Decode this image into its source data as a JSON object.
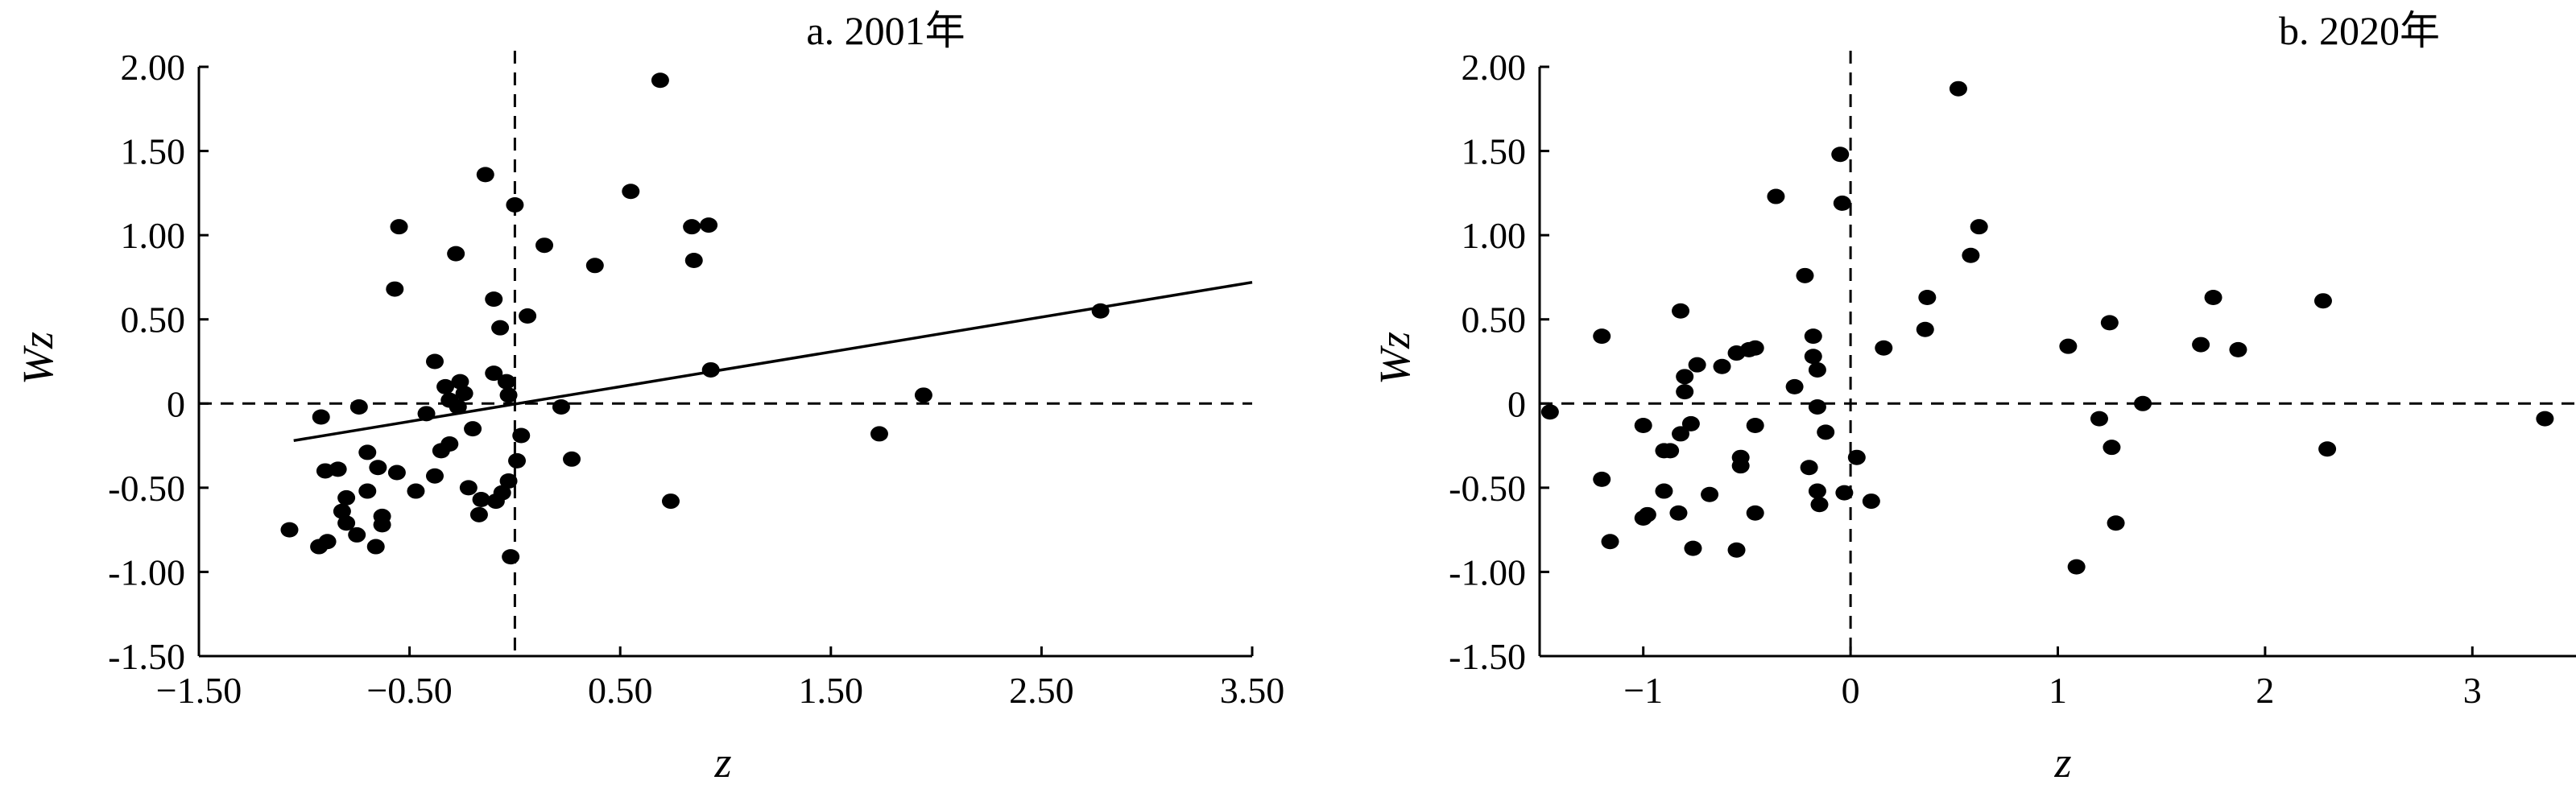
{
  "chart_data": [
    {
      "type": "scatter",
      "title": "a. 2001年",
      "xlabel": "z",
      "ylabel": "Wz",
      "xlim": [
        -1.5,
        3.5
      ],
      "ylim": [
        -1.5,
        2.0
      ],
      "xticks": [
        -1.5,
        -0.5,
        0.5,
        1.5,
        2.5,
        3.5
      ],
      "xtick_labels": [
        "−1.50",
        "−0.50",
        "0.50",
        "1.50",
        "2.50",
        "3.50"
      ],
      "yticks": [
        -1.5,
        -1.0,
        -0.5,
        0,
        0.5,
        1.0,
        1.5,
        2.0
      ],
      "ytick_labels": [
        "-1.50",
        "-1.00",
        "-0.50",
        "0",
        "0.50",
        "1.00",
        "1.50",
        "2.00"
      ],
      "reference_lines": {
        "x": 0,
        "y": 0
      },
      "trendline": {
        "x": [
          -1.05,
          3.5
        ],
        "y": [
          -0.22,
          0.72
        ]
      },
      "points": [
        [
          -1.07,
          -0.75
        ],
        [
          -0.93,
          -0.85
        ],
        [
          -0.92,
          -0.08
        ],
        [
          -0.9,
          -0.4
        ],
        [
          -0.89,
          -0.82
        ],
        [
          -0.84,
          -0.39
        ],
        [
          -0.82,
          -0.64
        ],
        [
          -0.8,
          -0.56
        ],
        [
          -0.8,
          -0.71
        ],
        [
          -0.74,
          -0.02
        ],
        [
          -0.75,
          -0.78
        ],
        [
          -0.7,
          -0.29
        ],
        [
          -0.7,
          -0.52
        ],
        [
          -0.66,
          -0.85
        ],
        [
          -0.65,
          -0.38
        ],
        [
          -0.63,
          -0.67
        ],
        [
          -0.63,
          -0.72
        ],
        [
          -0.57,
          0.68
        ],
        [
          -0.55,
          1.05
        ],
        [
          -0.56,
          -0.41
        ],
        [
          -0.47,
          -0.52
        ],
        [
          -0.38,
          0.25
        ],
        [
          -0.38,
          -0.43
        ],
        [
          -0.42,
          -0.06
        ],
        [
          -0.35,
          -0.28
        ],
        [
          -0.33,
          0.1
        ],
        [
          -0.31,
          -0.24
        ],
        [
          -0.31,
          0.02
        ],
        [
          -0.28,
          0.89
        ],
        [
          -0.27,
          -0.02
        ],
        [
          -0.24,
          0.06
        ],
        [
          -0.26,
          0.13
        ],
        [
          -0.22,
          -0.5
        ],
        [
          -0.2,
          -0.15
        ],
        [
          -0.17,
          -0.66
        ],
        [
          -0.16,
          -0.57
        ],
        [
          -0.14,
          1.36
        ],
        [
          -0.1,
          0.62
        ],
        [
          -0.1,
          0.18
        ],
        [
          -0.09,
          -0.58
        ],
        [
          -0.06,
          -0.53
        ],
        [
          -0.07,
          0.45
        ],
        [
          -0.04,
          0.13
        ],
        [
          -0.03,
          0.05
        ],
        [
          -0.02,
          -0.91
        ],
        [
          -0.03,
          -0.46
        ],
        [
          0.0,
          1.18
        ],
        [
          0.01,
          -0.34
        ],
        [
          0.03,
          -0.19
        ],
        [
          0.06,
          0.52
        ],
        [
          0.14,
          0.94
        ],
        [
          0.22,
          -0.02
        ],
        [
          0.27,
          -0.33
        ],
        [
          0.38,
          0.82
        ],
        [
          0.55,
          1.26
        ],
        [
          0.69,
          1.92
        ],
        [
          0.74,
          -0.58
        ],
        [
          0.84,
          1.05
        ],
        [
          0.85,
          0.85
        ],
        [
          0.92,
          1.06
        ],
        [
          0.93,
          0.2
        ],
        [
          1.73,
          -0.18
        ],
        [
          1.94,
          0.05
        ],
        [
          2.78,
          0.55
        ]
      ]
    },
    {
      "type": "scatter",
      "title": "b. 2020年",
      "xlabel": "z",
      "ylabel": "Wz",
      "xlim": [
        -1.5,
        3.5
      ],
      "ylim": [
        -1.5,
        2.0
      ],
      "xticks": [
        -1,
        0,
        1,
        2,
        3
      ],
      "xtick_labels": [
        "−1",
        "0",
        "1",
        "2",
        "3"
      ],
      "yticks": [
        -1.5,
        -1.0,
        -0.5,
        0,
        0.5,
        1.0,
        1.5,
        2.0
      ],
      "ytick_labels": [
        "-1.50",
        "-1.00",
        "-0.50",
        "0",
        "0.50",
        "1.00",
        "1.50",
        "2.00"
      ],
      "reference_lines": {
        "x": 0,
        "y": 0
      },
      "points": [
        [
          -1.45,
          -0.05
        ],
        [
          -1.2,
          0.4
        ],
        [
          -1.2,
          -0.45
        ],
        [
          -1.16,
          -0.82
        ],
        [
          -1.0,
          -0.13
        ],
        [
          -1.0,
          -0.68
        ],
        [
          -0.98,
          -0.66
        ],
        [
          -0.9,
          -0.28
        ],
        [
          -0.9,
          -0.52
        ],
        [
          -0.87,
          -0.28
        ],
        [
          -0.83,
          -0.65
        ],
        [
          -0.82,
          0.55
        ],
        [
          -0.82,
          -0.18
        ],
        [
          -0.8,
          0.16
        ],
        [
          -0.8,
          0.07
        ],
        [
          -0.77,
          -0.12
        ],
        [
          -0.76,
          -0.86
        ],
        [
          -0.74,
          0.23
        ],
        [
          -0.68,
          -0.54
        ],
        [
          -0.62,
          0.22
        ],
        [
          -0.55,
          0.3
        ],
        [
          -0.55,
          -0.87
        ],
        [
          -0.53,
          -0.32
        ],
        [
          -0.53,
          -0.37
        ],
        [
          -0.49,
          0.32
        ],
        [
          -0.46,
          0.33
        ],
        [
          -0.46,
          -0.13
        ],
        [
          -0.46,
          -0.65
        ],
        [
          -0.36,
          1.23
        ],
        [
          -0.27,
          0.1
        ],
        [
          -0.22,
          0.76
        ],
        [
          -0.2,
          -0.38
        ],
        [
          -0.18,
          0.4
        ],
        [
          -0.18,
          0.28
        ],
        [
          -0.16,
          -0.02
        ],
        [
          -0.16,
          0.2
        ],
        [
          -0.16,
          -0.52
        ],
        [
          -0.15,
          -0.6
        ],
        [
          -0.12,
          -0.17
        ],
        [
          -0.05,
          1.48
        ],
        [
          -0.04,
          1.19
        ],
        [
          -0.03,
          -0.53
        ],
        [
          0.03,
          -0.32
        ],
        [
          0.1,
          -0.58
        ],
        [
          0.16,
          0.33
        ],
        [
          0.36,
          0.44
        ],
        [
          0.37,
          0.63
        ],
        [
          0.52,
          1.87
        ],
        [
          0.58,
          0.88
        ],
        [
          0.62,
          1.05
        ],
        [
          1.05,
          0.34
        ],
        [
          1.09,
          -0.97
        ],
        [
          1.2,
          -0.09
        ],
        [
          1.25,
          0.48
        ],
        [
          1.26,
          -0.26
        ],
        [
          1.28,
          -0.71
        ],
        [
          1.41,
          0.0
        ],
        [
          1.69,
          0.35
        ],
        [
          1.75,
          0.63
        ],
        [
          1.87,
          0.32
        ],
        [
          2.28,
          0.61
        ],
        [
          2.3,
          -0.27
        ],
        [
          3.35,
          -0.09
        ]
      ]
    }
  ]
}
